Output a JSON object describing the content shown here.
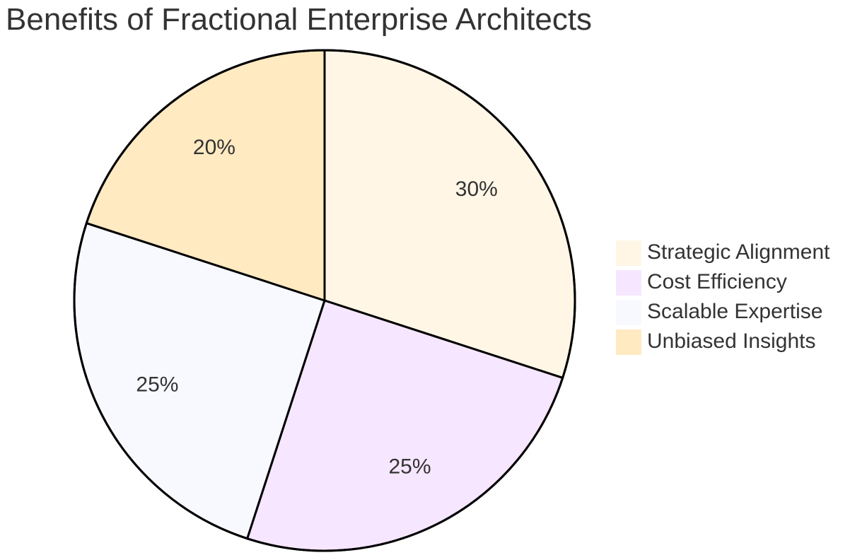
{
  "chart_data": {
    "type": "pie",
    "title": "Benefits of Fractional Enterprise Architects",
    "slices": [
      {
        "label": "Strategic Alignment",
        "value": 30,
        "display": "30%",
        "color": "#fff6e6"
      },
      {
        "label": "Cost Efficiency",
        "value": 25,
        "display": "25%",
        "color": "#f6e6ff"
      },
      {
        "label": "Scalable Expertise",
        "value": 25,
        "display": "25%",
        "color": "#f8f9ff"
      },
      {
        "label": "Unbiased Insights",
        "value": 20,
        "display": "20%",
        "color": "#ffeac2"
      }
    ],
    "legend_position": "right"
  }
}
